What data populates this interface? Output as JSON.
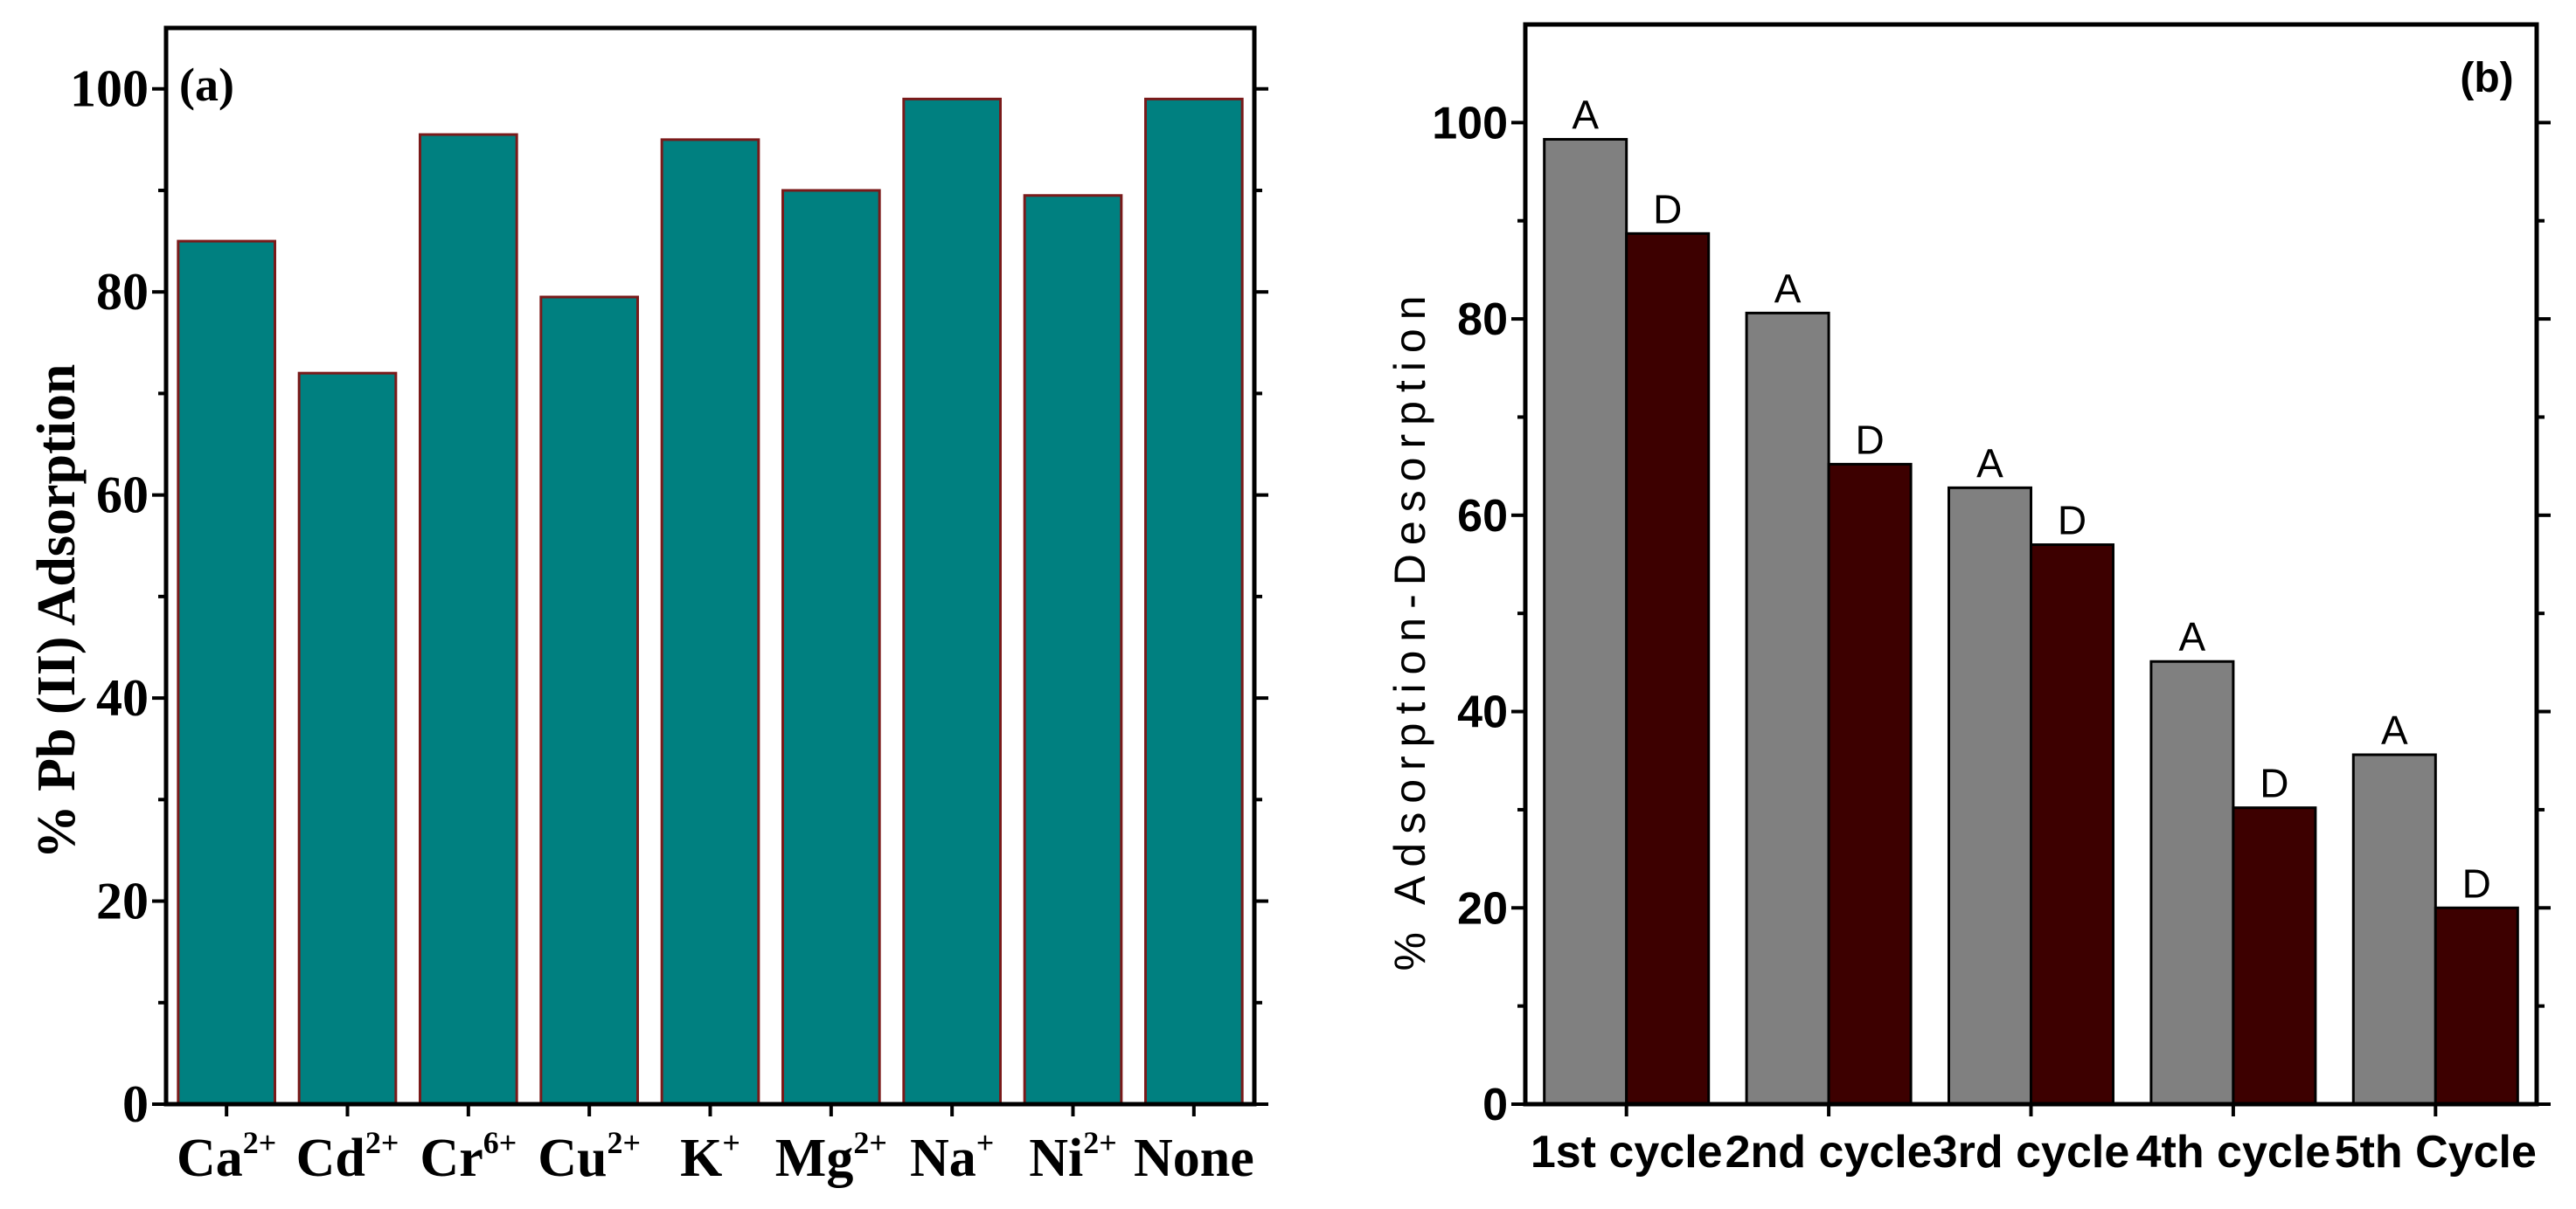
{
  "chart_data": [
    {
      "type": "bar",
      "panel_label": "(a)",
      "title": "",
      "xlabel": "",
      "ylabel": "% Pb (II) Adsorption",
      "ylim": [
        0,
        106
      ],
      "yticks": [
        0,
        20,
        40,
        60,
        80,
        100
      ],
      "categories": [
        "Ca",
        "Cd",
        "Cr",
        "Cu",
        "K",
        "Mg",
        "Na",
        "Ni",
        "None"
      ],
      "category_superscripts": [
        "2+",
        "2+",
        "6+",
        "2+",
        "+",
        "2+",
        "+",
        "2+",
        ""
      ],
      "values": [
        85,
        72,
        95.5,
        79.5,
        95,
        90,
        99,
        89.5,
        99
      ],
      "colors": {
        "bar": "#008080",
        "bar_edge": "#7a1a1a"
      }
    },
    {
      "type": "bar",
      "panel_label": "(b)",
      "title": "",
      "xlabel": "",
      "ylabel": "% Adsorption-Desorption",
      "ylim": [
        0,
        110
      ],
      "yticks": [
        0,
        20,
        40,
        60,
        80,
        100
      ],
      "categories": [
        "1st cycle",
        "2nd cycle",
        "3rd cycle",
        "4th cycle",
        "5th Cycle"
      ],
      "series": [
        {
          "name": "Adsorption",
          "label": "A",
          "values": [
            98.3,
            80.6,
            62.8,
            45.1,
            35.6
          ],
          "color": "#808080"
        },
        {
          "name": "Desorption",
          "label": "D",
          "values": [
            88.7,
            65.2,
            57.0,
            30.2,
            20.0
          ],
          "color": "#3d0000"
        }
      ]
    }
  ]
}
